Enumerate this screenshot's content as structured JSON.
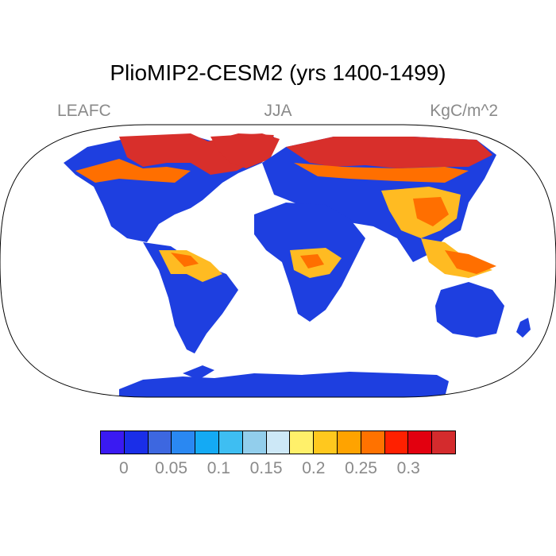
{
  "figure": {
    "title": "PlioMIP2-CESM2 (yrs 1400-1499)",
    "left_label": "LEAFC",
    "center_label": "JJA",
    "right_label": "KgC/m^2"
  },
  "map": {
    "projection": "Robinson",
    "field": "LEAFC",
    "background": "#ffffff",
    "land_colors": {
      "boreal": "#d82f2b",
      "high": "#ff6f00",
      "mid": "#ffbb22",
      "low": "#1e3fe0",
      "zero": "#1a2ee8",
      "antarctica": "#1e3fe0"
    }
  },
  "colorbar": {
    "colors": [
      "#3a1af2",
      "#1a2ee8",
      "#3d67e0",
      "#2a88f2",
      "#14aaf4",
      "#3ebef2",
      "#92ceec",
      "#cde8f7",
      "#fff06a",
      "#ffc81e",
      "#ffa300",
      "#ff7200",
      "#ff2000",
      "#e2000f",
      "#d42b2d"
    ],
    "tick_labels": [
      "0",
      "0.05",
      "0.1",
      "0.15",
      "0.2",
      "0.25",
      "0.3"
    ]
  }
}
